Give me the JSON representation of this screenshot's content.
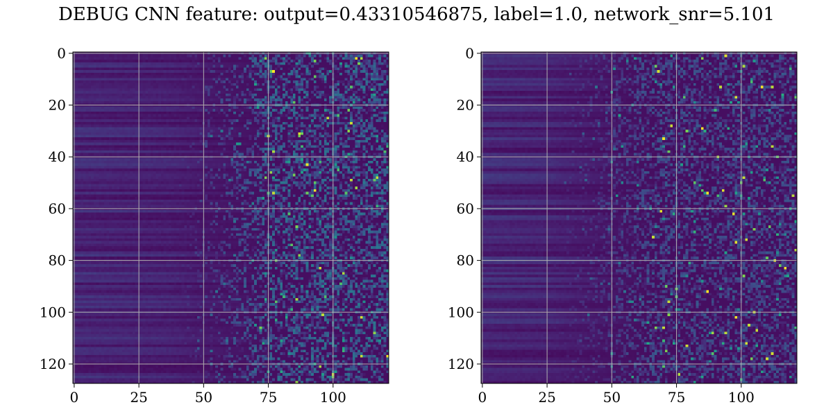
{
  "chart_data": {
    "title": "DEBUG CNN feature: output=0.43310546875, label=1.0, network_snr=5.101",
    "colormap": "viridis",
    "panels": [
      {
        "type": "heatmap",
        "name": "left",
        "rows": 128,
        "cols": 122,
        "xlim": [
          -0.5,
          121.5
        ],
        "ylim": [
          127.5,
          -0.5
        ],
        "xticks": [
          0,
          25,
          50,
          75,
          100
        ],
        "xtick_labels": [
          "0",
          "25",
          "50",
          "75",
          "100"
        ],
        "yticks": [
          0,
          20,
          40,
          60,
          80,
          100,
          120
        ],
        "ytick_labels": [
          "0",
          "20",
          "40",
          "60",
          "80",
          "100",
          "120"
        ],
        "grid": true,
        "seed": 11,
        "noise_onset_col": 62,
        "noise_strength": 1.0
      },
      {
        "type": "heatmap",
        "name": "right",
        "rows": 128,
        "cols": 122,
        "xlim": [
          -0.5,
          121.5
        ],
        "ylim": [
          127.5,
          -0.5
        ],
        "xticks": [
          0,
          25,
          50,
          75,
          100
        ],
        "xtick_labels": [
          "0",
          "25",
          "50",
          "75",
          "100"
        ],
        "yticks": [
          0,
          20,
          40,
          60,
          80,
          100,
          120
        ],
        "ytick_labels": [
          "0",
          "20",
          "40",
          "60",
          "80",
          "100",
          "120"
        ],
        "grid": true,
        "seed": 29,
        "noise_onset_col": 50,
        "noise_strength": 0.7
      }
    ]
  }
}
